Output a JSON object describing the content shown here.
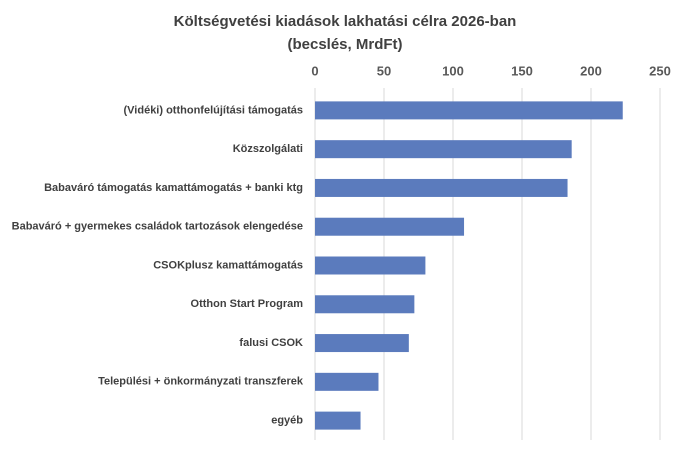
{
  "chart_data": {
    "type": "bar",
    "orientation": "horizontal",
    "title": "Költségvetési kiadások lakhatási célra 2026-ban",
    "subtitle": "(becslés, MrdFt)",
    "categories": [
      "(Vidéki) otthonfelújítási támogatás",
      "Közszolgálati",
      "Babaváró támogatás kamattámogatás + banki ktg",
      "Babaváró + gyermekes családok tartozások elengedése",
      "CSOKplusz kamattámogatás",
      "Otthon Start Program",
      "falusi CSOK",
      "Települési + önkormányzati transzferek",
      "egyéb"
    ],
    "values": [
      223,
      186,
      183,
      108,
      80,
      72,
      68,
      46,
      33
    ],
    "color": "#5b7bbd",
    "xlim": [
      0,
      250
    ],
    "xticks": [
      0,
      50,
      100,
      150,
      200,
      250
    ],
    "grid": true
  }
}
